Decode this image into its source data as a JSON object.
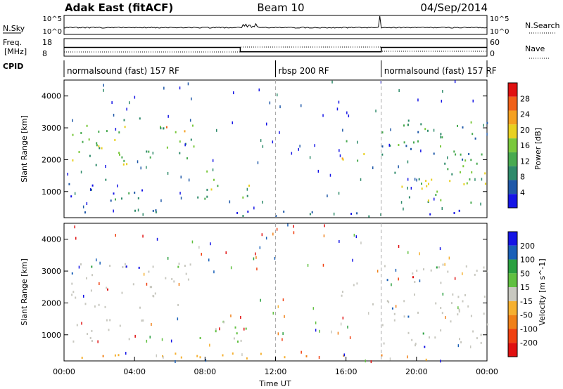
{
  "header": {
    "station": "Adak East (fitACF)",
    "beam": "Beam 10",
    "date": "04/Sep/2014"
  },
  "noise_panel": {
    "left_label": "N.Sky",
    "right_label": "N.Search",
    "left_ticks": [
      "10^5",
      "10^0"
    ],
    "right_ticks": [
      "10^5",
      "10^0"
    ],
    "scale": "log"
  },
  "freq_panel": {
    "left_label_1": "Freq.",
    "left_label_2": "[MHz]",
    "left_ticks": [
      "18",
      "8"
    ],
    "right_label": "Nave",
    "right_ticks": [
      "60",
      "0"
    ],
    "cpid_label": "CPID",
    "freq_mhz": [
      {
        "t_from": "00:00",
        "t_to": "10:00",
        "value": 13
      },
      {
        "t_from": "10:00",
        "t_to": "18:00",
        "value": 10.5
      },
      {
        "t_from": "18:00",
        "t_to": "24:00",
        "value": 13
      }
    ]
  },
  "cpid_segments": [
    {
      "t_from": "00:00",
      "t_to": "12:00",
      "label": "normalsound (fast) 157 RF"
    },
    {
      "t_from": "12:00",
      "t_to": "18:00",
      "label": "rbsp 200 RF"
    },
    {
      "t_from": "18:00",
      "t_to": "24:00",
      "label": "normalsound (fast) 157 RF"
    }
  ],
  "x_axis": {
    "label": "Time UT",
    "ticks": [
      "00:00",
      "04:00",
      "08:00",
      "12:00",
      "16:00",
      "20:00",
      "00:00"
    ]
  },
  "colors": {
    "power_scale": [
      "#1515e6",
      "#1f58a8",
      "#2e8a6a",
      "#48aa50",
      "#7ac83c",
      "#e8d020",
      "#f5a020",
      "#f06018",
      "#e01010"
    ],
    "velocity_scale": [
      "#e01010",
      "#f04010",
      "#f08018",
      "#f5b030",
      "#c8c8c0",
      "#60c040",
      "#2aa040",
      "#1a60b8",
      "#1515e6"
    ],
    "grey": "#c8c8c0"
  },
  "chart_data": [
    {
      "type": "heatmap",
      "name_printed": "Power",
      "ylabel": "Slant Range [km]",
      "yticks": [
        "4000",
        "3000",
        "2000",
        "1000"
      ],
      "ylim": [
        180,
        4500
      ],
      "xlim": [
        "00:00",
        "24:00"
      ],
      "colorbar": {
        "label": "Power [dB]",
        "ticks": [
          "28",
          "24",
          "20",
          "16",
          "12",
          "8",
          "4"
        ],
        "range": [
          0,
          32
        ]
      },
      "scatter_regions": [
        {
          "t_from": "00:15",
          "t_to": "07:30",
          "range_from": 1800,
          "range_to": 3300,
          "level": 16
        },
        {
          "t_from": "05:30",
          "t_to": "07:00",
          "range_from": 2600,
          "range_to": 3100,
          "level": 24
        },
        {
          "t_from": "00:15",
          "t_to": "04:30",
          "range_from": 700,
          "range_to": 1500,
          "level": 10
        },
        {
          "t_from": "07:30",
          "t_to": "10:30",
          "range_from": 750,
          "range_to": 1700,
          "level": 18
        },
        {
          "t_from": "15:30",
          "t_to": "17:30",
          "range_from": 1900,
          "range_to": 2600,
          "level": 22
        },
        {
          "t_from": "18:00",
          "t_to": "24:00",
          "range_from": 1500,
          "range_to": 3300,
          "level": 14
        },
        {
          "t_from": "18:00",
          "t_to": "24:00",
          "range_from": 600,
          "range_to": 1600,
          "level": 16
        },
        {
          "t_from": "00:00",
          "t_to": "24:00",
          "range_from": 200,
          "range_to": 400,
          "level": 6
        }
      ]
    },
    {
      "type": "heatmap",
      "name_printed": "Velocity",
      "ylabel": "Slant Range [km]",
      "yticks": [
        "4000",
        "3000",
        "2000",
        "1000"
      ],
      "ylim": [
        180,
        4500
      ],
      "xlim": [
        "00:00",
        "24:00"
      ],
      "colorbar": {
        "label": "Velocity [m s^-1]",
        "ticks": [
          "200",
          "100",
          "50",
          "15",
          "-15",
          "-50",
          "-100",
          "-200"
        ],
        "range": [
          -250,
          250
        ]
      },
      "scatter_regions": [
        {
          "t_from": "00:15",
          "t_to": "07:30",
          "range_from": 1800,
          "range_to": 3300,
          "velocity": 0
        },
        {
          "t_from": "00:15",
          "t_to": "04:30",
          "range_from": 700,
          "range_to": 1500,
          "velocity": 0
        },
        {
          "t_from": "07:30",
          "t_to": "10:30",
          "range_from": 750,
          "range_to": 1700,
          "velocity": 40
        },
        {
          "t_from": "15:30",
          "t_to": "17:30",
          "range_from": 1900,
          "range_to": 2600,
          "velocity": 0
        },
        {
          "t_from": "18:00",
          "t_to": "24:00",
          "range_from": 600,
          "range_to": 3300,
          "velocity": 0
        },
        {
          "t_from": "00:00",
          "t_to": "24:00",
          "range_from": 200,
          "range_to": 400,
          "velocity": -60
        }
      ]
    }
  ]
}
